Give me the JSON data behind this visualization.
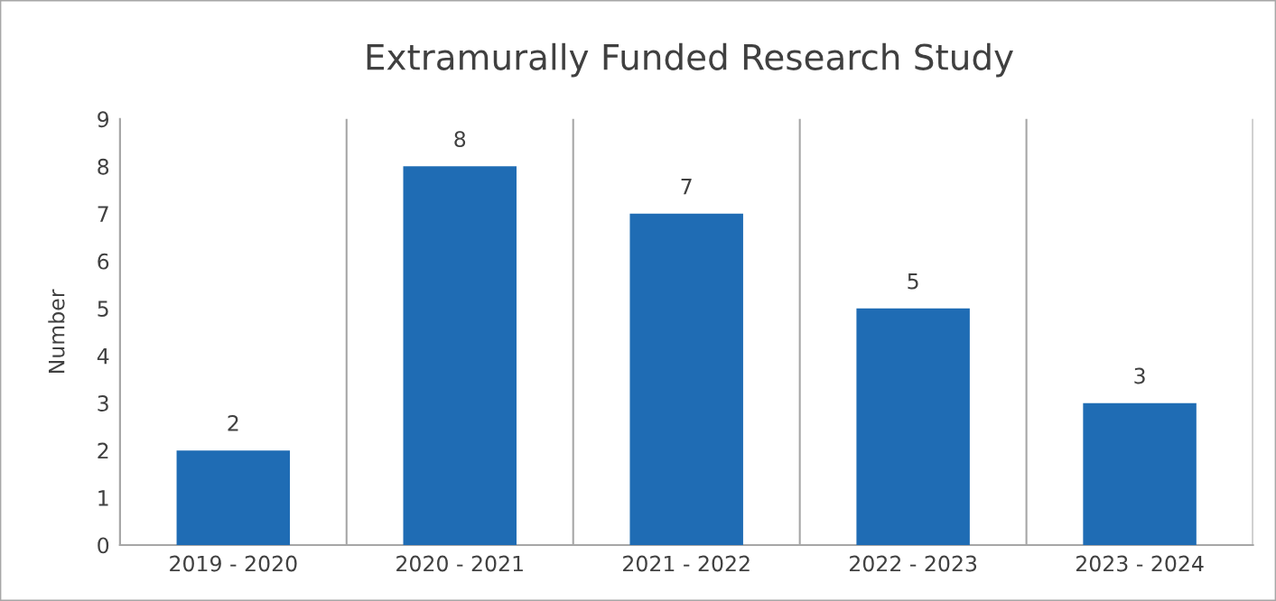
{
  "chart_data": {
    "type": "bar",
    "title": "Extramurally Funded Research Study",
    "ylabel": "Number",
    "categories": [
      "2019 - 2020",
      "2020 - 2021",
      "2021 - 2022",
      "2022 - 2023",
      "2023 - 2024"
    ],
    "values": [
      2,
      8,
      7,
      5,
      3
    ],
    "color": "#1f6cb4",
    "ylim": [
      0,
      9
    ],
    "yticks": [
      0,
      1,
      2,
      3,
      4,
      5,
      6,
      7,
      8,
      9
    ],
    "grid": "x",
    "data_labels": true
  }
}
